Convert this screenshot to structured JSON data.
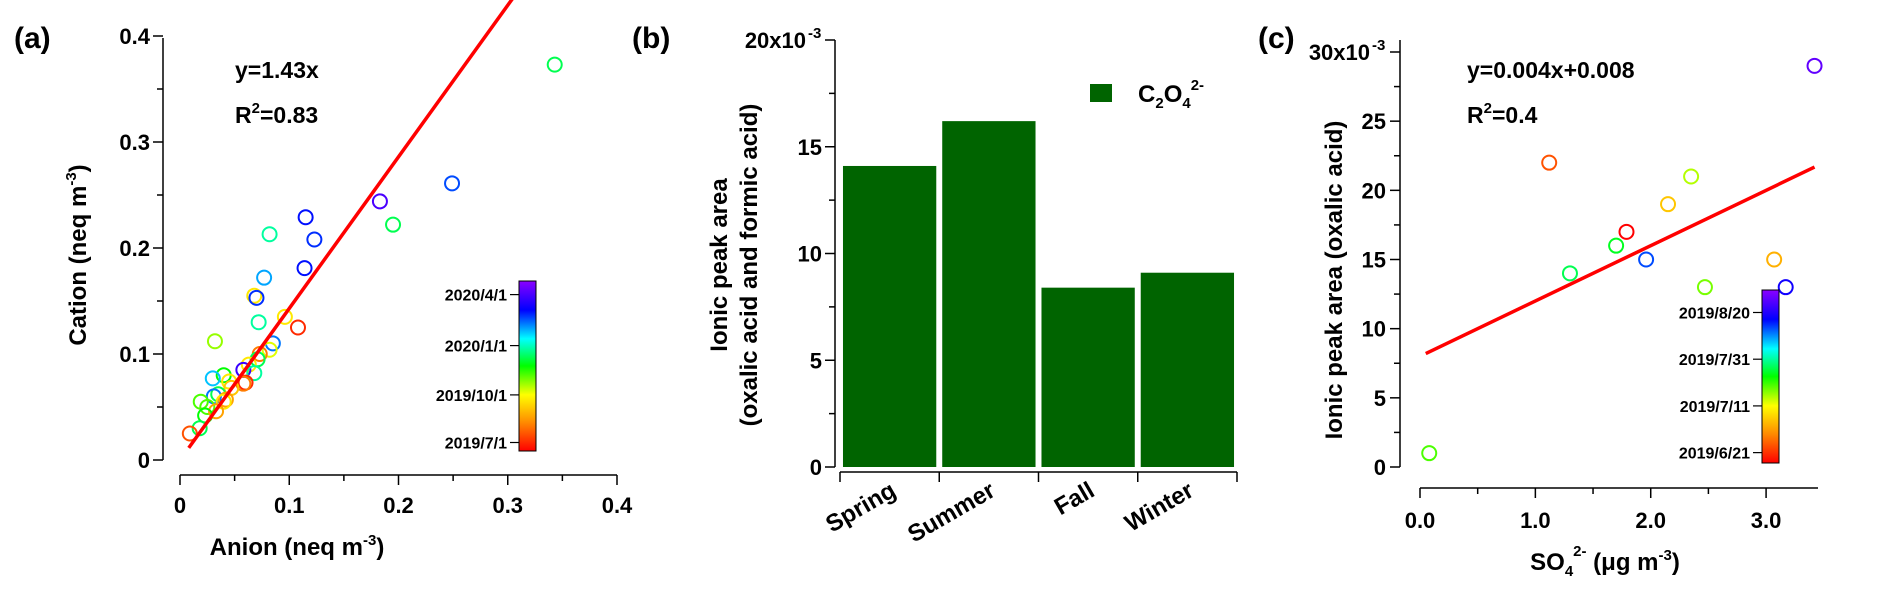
{
  "colors": {
    "fit_line": "#ff0000",
    "bar_fill": "#006400",
    "axis": "#000000",
    "colorbar": [
      "#ff0000",
      "#ffa500",
      "#ffff00",
      "#00ff00",
      "#00ffff",
      "#0000ff",
      "#8b00ff"
    ]
  },
  "chart_data": [
    {
      "panel": "(a)",
      "type": "scatter",
      "xlabel": "Anion (neq m",
      "xlabel_sup": "-3",
      "xlabel_tail": ")",
      "ylabel": "Cation (neq m",
      "ylabel_sup": "-3",
      "ylabel_tail": ")",
      "xlim": [
        0,
        0.4
      ],
      "ylim": [
        0,
        0.4
      ],
      "xticks": [
        "0",
        "0.1",
        "0.2",
        "0.3",
        "0.4"
      ],
      "yticks": [
        "0",
        "0.1",
        "0.2",
        "0.3",
        "0.4"
      ],
      "tick_values": [
        0,
        0.1,
        0.2,
        0.3,
        0.4
      ],
      "annotation_eq": "y=1.43x",
      "annotation_r2_pre": "R",
      "annotation_r2_sup": "2",
      "annotation_r2_post": "=0.83",
      "fit": {
        "slope": 1.43,
        "intercept": 0,
        "x_range": [
          0.008,
          0.343
        ]
      },
      "colorbar_ticks": [
        "2020/4/1",
        "2020/1/1",
        "2019/10/1",
        "2019/7/1"
      ],
      "points": [
        {
          "x": 0.343,
          "y": 0.373,
          "c": 0.55
        },
        {
          "x": 0.249,
          "y": 0.261,
          "c": 0.78
        },
        {
          "x": 0.183,
          "y": 0.244,
          "c": 0.92
        },
        {
          "x": 0.195,
          "y": 0.222,
          "c": 0.55
        },
        {
          "x": 0.115,
          "y": 0.229,
          "c": 0.82
        },
        {
          "x": 0.123,
          "y": 0.208,
          "c": 0.8
        },
        {
          "x": 0.082,
          "y": 0.213,
          "c": 0.6
        },
        {
          "x": 0.114,
          "y": 0.181,
          "c": 0.82
        },
        {
          "x": 0.077,
          "y": 0.172,
          "c": 0.72
        },
        {
          "x": 0.068,
          "y": 0.155,
          "c": 0.3
        },
        {
          "x": 0.07,
          "y": 0.153,
          "c": 0.8
        },
        {
          "x": 0.072,
          "y": 0.13,
          "c": 0.6
        },
        {
          "x": 0.096,
          "y": 0.135,
          "c": 0.3
        },
        {
          "x": 0.108,
          "y": 0.125,
          "c": 0.05
        },
        {
          "x": 0.032,
          "y": 0.112,
          "c": 0.4
        },
        {
          "x": 0.085,
          "y": 0.11,
          "c": 0.75
        },
        {
          "x": 0.082,
          "y": 0.104,
          "c": 0.35
        },
        {
          "x": 0.073,
          "y": 0.1,
          "c": 0.15
        },
        {
          "x": 0.071,
          "y": 0.095,
          "c": 0.55
        },
        {
          "x": 0.063,
          "y": 0.09,
          "c": 0.3
        },
        {
          "x": 0.058,
          "y": 0.085,
          "c": 0.9
        },
        {
          "x": 0.068,
          "y": 0.082,
          "c": 0.6
        },
        {
          "x": 0.04,
          "y": 0.08,
          "c": 0.5
        },
        {
          "x": 0.03,
          "y": 0.077,
          "c": 0.7
        },
        {
          "x": 0.045,
          "y": 0.074,
          "c": 0.3
        },
        {
          "x": 0.06,
          "y": 0.073,
          "c": 0.05
        },
        {
          "x": 0.058,
          "y": 0.072,
          "c": 0.15
        },
        {
          "x": 0.047,
          "y": 0.068,
          "c": 0.25
        },
        {
          "x": 0.035,
          "y": 0.062,
          "c": 0.55
        },
        {
          "x": 0.031,
          "y": 0.06,
          "c": 0.75
        },
        {
          "x": 0.042,
          "y": 0.057,
          "c": 0.2
        },
        {
          "x": 0.019,
          "y": 0.055,
          "c": 0.45
        },
        {
          "x": 0.04,
          "y": 0.055,
          "c": 0.3
        },
        {
          "x": 0.025,
          "y": 0.05,
          "c": 0.45
        },
        {
          "x": 0.033,
          "y": 0.046,
          "c": 0.2
        },
        {
          "x": 0.023,
          "y": 0.042,
          "c": 0.5
        },
        {
          "x": 0.018,
          "y": 0.03,
          "c": 0.55
        },
        {
          "x": 0.009,
          "y": 0.025,
          "c": 0.1
        }
      ]
    },
    {
      "panel": "(b)",
      "type": "bar",
      "categories": [
        "Spring",
        "Summer",
        "Fall",
        "Winter"
      ],
      "values": [
        0.0141,
        0.0162,
        0.0084,
        0.0091
      ],
      "ylim": [
        0,
        0.02
      ],
      "yticks": [
        "0",
        "5",
        "10",
        "15",
        "20x10"
      ],
      "ytick_sup": "-3",
      "ylabel_line1": "Ionic peak area",
      "ylabel_line2": "(oxalic acid and formic acid)",
      "legend_main": "C",
      "legend_sub1": "2",
      "legend_mid": "O",
      "legend_sub2": "4",
      "legend_sup": "2-"
    },
    {
      "panel": "(c)",
      "type": "scatter",
      "xlabel": "SO",
      "xlabel_sub": "4",
      "xlabel_sup": "2-",
      "xlabel_tail": " (μg m",
      "xlabel_sup2": "-3",
      "xlabel_tail2": ")",
      "ylabel": "Ionic peak area (oxalic acid)",
      "xlim": [
        0,
        3.45
      ],
      "ylim": [
        0,
        0.03
      ],
      "xticks": [
        "0.0",
        "1.0",
        "2.0",
        "3.0"
      ],
      "yticks": [
        "0",
        "5",
        "10",
        "15",
        "20",
        "25",
        "30x10"
      ],
      "ytick_sup": "-3",
      "annotation_eq": "y=0.004x+0.008",
      "annotation_r2_pre": "R",
      "annotation_r2_sup": "2",
      "annotation_r2_post": "=0.4",
      "fit": {
        "slope": 0.004,
        "intercept": 0.008,
        "x_range": [
          0.05,
          3.42
        ]
      },
      "colorbar_ticks": [
        "2019/8/20",
        "2019/7/31",
        "2019/7/11",
        "2019/6/21"
      ],
      "points": [
        {
          "x": 0.08,
          "y": 0.001,
          "c": 0.45
        },
        {
          "x": 1.12,
          "y": 0.022,
          "c": 0.1
        },
        {
          "x": 1.3,
          "y": 0.014,
          "c": 0.55
        },
        {
          "x": 1.7,
          "y": 0.016,
          "c": 0.52
        },
        {
          "x": 1.79,
          "y": 0.017,
          "c": 0.0
        },
        {
          "x": 1.96,
          "y": 0.015,
          "c": 0.78
        },
        {
          "x": 2.15,
          "y": 0.019,
          "c": 0.25
        },
        {
          "x": 2.35,
          "y": 0.021,
          "c": 0.38
        },
        {
          "x": 2.47,
          "y": 0.013,
          "c": 0.42
        },
        {
          "x": 3.07,
          "y": 0.015,
          "c": 0.22
        },
        {
          "x": 3.17,
          "y": 0.013,
          "c": 0.85
        },
        {
          "x": 3.42,
          "y": 0.029,
          "c": 0.95
        }
      ]
    }
  ]
}
